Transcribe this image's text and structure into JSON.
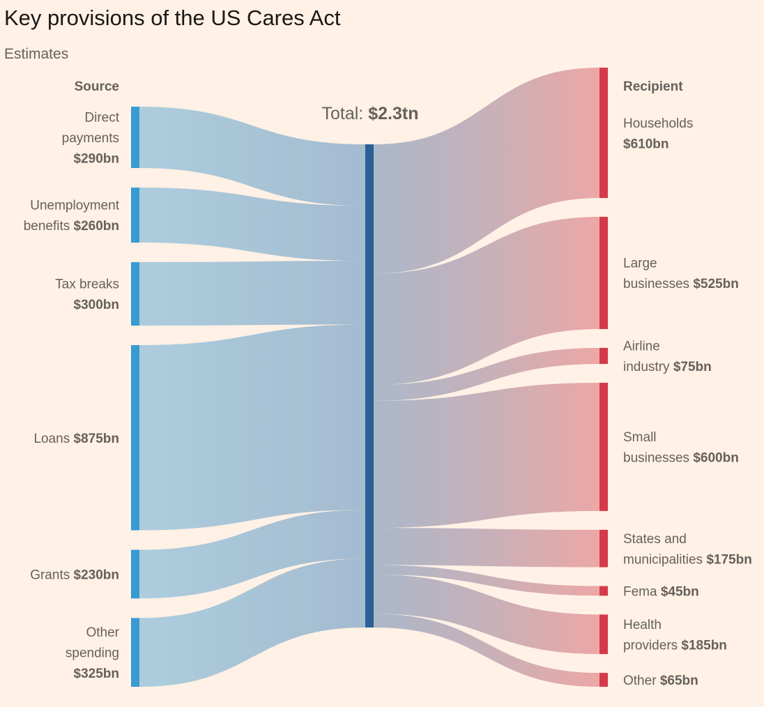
{
  "title": "Key provisions of the US Cares Act",
  "subtitle": "Estimates",
  "chart_data": {
    "type": "sankey",
    "source_header": "Source",
    "recipient_header": "Recipient",
    "total_label": "Total:",
    "total_value": "$2.3tn",
    "colors": {
      "source": "#3a9ad2",
      "hub": "#2b5f96",
      "recipient": "#d53a4b",
      "flow_start": "#a8cbdd",
      "flow_end": "#eba3a2"
    },
    "sources": [
      {
        "name": "Direct payments",
        "lines": [
          "Direct",
          "payments",
          "$290bn"
        ],
        "bold_line": 2,
        "value": 290
      },
      {
        "name": "Unemployment benefits",
        "lines": [
          "Unemployment",
          "benefits ",
          "$260bn"
        ],
        "inline_value": true,
        "value": 260
      },
      {
        "name": "Tax breaks",
        "lines": [
          "Tax breaks",
          "$300bn"
        ],
        "bold_line": 1,
        "value": 300
      },
      {
        "name": "Loans",
        "lines": [
          "Loans ",
          "$875bn"
        ],
        "inline_value": true,
        "single": true,
        "value": 875
      },
      {
        "name": "Grants",
        "lines": [
          "Grants ",
          "$230bn"
        ],
        "inline_value": true,
        "single": true,
        "value": 230
      },
      {
        "name": "Other spending",
        "lines": [
          "Other",
          "spending",
          "$325bn"
        ],
        "bold_line": 2,
        "value": 325
      }
    ],
    "recipients": [
      {
        "name": "Households",
        "lines": [
          "Households",
          "$610bn"
        ],
        "bold_line": 1,
        "value": 610
      },
      {
        "name": "Large businesses",
        "lines": [
          "Large",
          "businesses ",
          "$525bn"
        ],
        "inline_value": true,
        "value": 525
      },
      {
        "name": "Airline industry",
        "lines": [
          "Airline",
          "industry ",
          "$75bn"
        ],
        "inline_value": true,
        "value": 75
      },
      {
        "name": "Small businesses",
        "lines": [
          "Small",
          "businesses ",
          "$600bn"
        ],
        "inline_value": true,
        "value": 600
      },
      {
        "name": "States and municipalities",
        "lines": [
          "States and",
          "municipalities ",
          "$175bn"
        ],
        "inline_value": true,
        "value": 175
      },
      {
        "name": "Fema",
        "lines": [
          "Fema ",
          "$45bn"
        ],
        "inline_value": true,
        "single": true,
        "value": 45
      },
      {
        "name": "Health providers",
        "lines": [
          "Health",
          "providers ",
          "$185bn"
        ],
        "inline_value": true,
        "value": 185
      },
      {
        "name": "Other",
        "lines": [
          "Other ",
          "$65bn"
        ],
        "inline_value": true,
        "single": true,
        "value": 65
      }
    ]
  }
}
